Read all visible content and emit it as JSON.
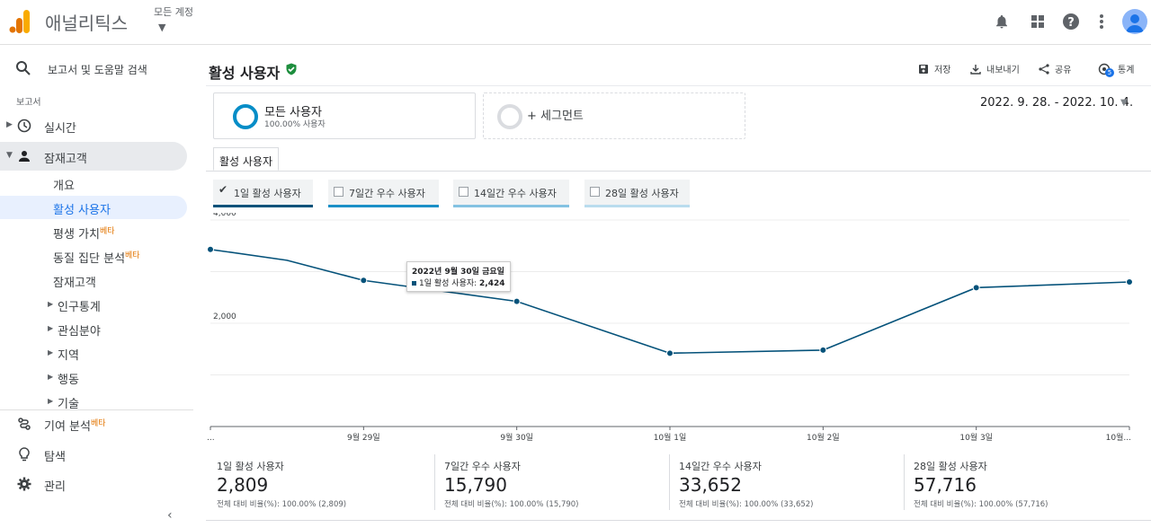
{
  "header": {
    "brand": "애널리틱스",
    "account_label": "모든 계정",
    "colors": {
      "logo_orange": "#f9ab00",
      "logo_dark": "#e37400"
    }
  },
  "sidebar": {
    "search_placeholder": "보고서 및 도움말 검색",
    "section_label": "보고서",
    "realtime": "실시간",
    "audience": "잠재고객",
    "subitems": {
      "overview": "개요",
      "active_users": "활성 사용자",
      "lifetime_value": "평생 가치",
      "cohort": "동질 집단 분석",
      "audiences": "잠재고객",
      "demographics": "인구통계",
      "interests": "관심분야",
      "geo": "지역",
      "behavior": "행동",
      "technology": "기술"
    },
    "beta_badge": "베타",
    "attribution": "기여 분석",
    "discover": "탐색",
    "admin": "관리"
  },
  "main": {
    "title": "활성 사용자",
    "actions": {
      "save": "저장",
      "export": "내보내기",
      "share": "공유",
      "insights": "통계",
      "insights_count": "5"
    },
    "segment_all": {
      "name": "모든 사용자",
      "sub": "100.00% 사용자"
    },
    "segment_add": "+ 세그먼트",
    "date_range": "2022. 9. 28. - 2022. 10. 4.",
    "tab": "활성 사용자",
    "metric_chips": [
      {
        "label": "1일 활성 사용자",
        "checked": true,
        "color": "#05527a"
      },
      {
        "label": "7일간 우수 사용자",
        "checked": false,
        "color": "#1a8fc7"
      },
      {
        "label": "14일간 우수 사용자",
        "checked": false,
        "color": "#83c2e2"
      },
      {
        "label": "28일 활성 사용자",
        "checked": false,
        "color": "#b9dcee"
      }
    ],
    "tooltip": {
      "date": "2022년 9월 30일 금요일",
      "series": "1일 활성 사용자",
      "value": "2,424"
    },
    "summary": [
      {
        "label": "1일 활성 사용자",
        "value": "2,809",
        "note": "전체 대비 비율(%): 100.00% (2,809)"
      },
      {
        "label": "7일간 우수 사용자",
        "value": "15,790",
        "note": "전체 대비 비율(%): 100.00% (15,790)"
      },
      {
        "label": "14일간 우수 사용자",
        "value": "33,652",
        "note": "전체 대비 비율(%): 100.00% (33,652)"
      },
      {
        "label": "28일 활성 사용자",
        "value": "57,716",
        "note": "전체 대비 비율(%): 100.00% (57,716)"
      }
    ]
  },
  "chart_data": {
    "type": "line",
    "title": "",
    "categories": [
      "...",
      "9월 29일",
      "9월 30일",
      "10월 1일",
      "10월 2일",
      "10월 3일",
      "10월..."
    ],
    "x_points": [
      0,
      1,
      2,
      3,
      4,
      5,
      6
    ],
    "series": [
      {
        "name": "1일 활성 사용자",
        "color": "#05527a",
        "x": [
          0,
          0.5,
          1,
          2,
          3,
          4,
          5,
          6
        ],
        "values": [
          3430,
          3220,
          2830,
          2424,
          1420,
          1480,
          2690,
          2800
        ]
      }
    ],
    "y_ticks": [
      "4,000",
      "2,000"
    ],
    "y_tick_values": [
      4000,
      2000
    ],
    "ylim": [
      0,
      4000
    ],
    "xlabel": "",
    "ylabel": ""
  }
}
